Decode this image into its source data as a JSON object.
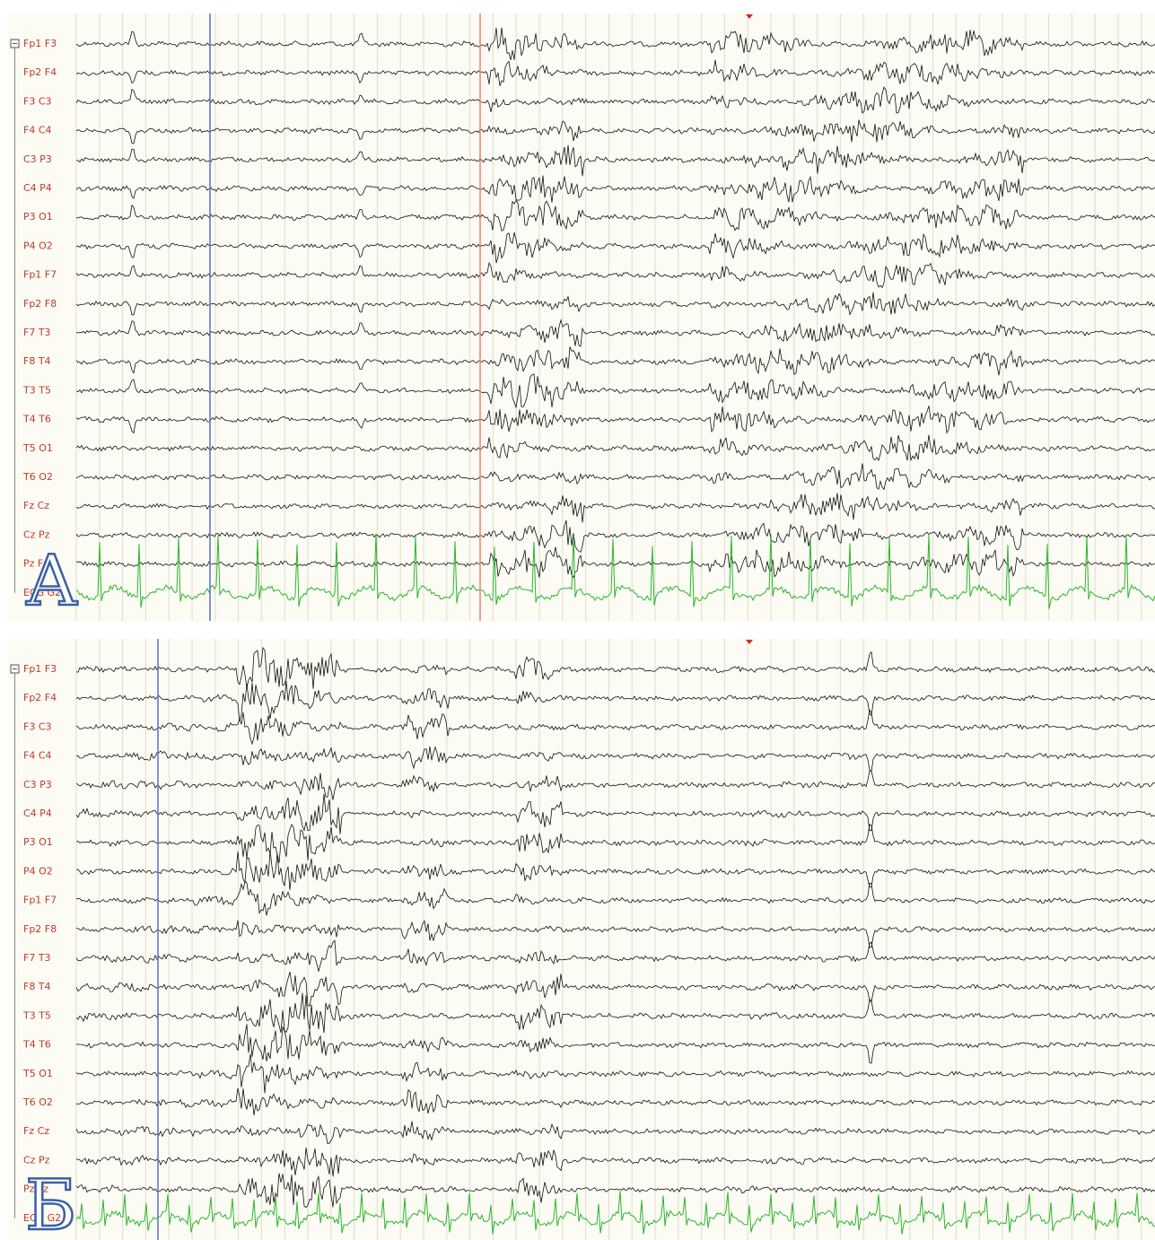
{
  "panels": [
    {
      "letter": "А",
      "channels": [
        "Fp1 F3",
        "Fp2 F4",
        "F3 C3",
        "F4 C4",
        "C3 P3",
        "C4 P4",
        "P3 O1",
        "P4 O2",
        "Fp1 F7",
        "Fp2 F8",
        "F7 T3",
        "F8 T4",
        "T3 T5",
        "T4 T6",
        "T5 O1",
        "T6 O2",
        "Fz Cz",
        "Cz Pz",
        "Pz Fz",
        "ECG G2"
      ]
    },
    {
      "letter": "Б",
      "channels": [
        "Fp1 F3",
        "Fp2 F4",
        "F3 C3",
        "F4 C4",
        "C3 P3",
        "C4 P4",
        "P3 O1",
        "P4 O2",
        "Fp1 F7",
        "Fp2 F8",
        "F7 T3",
        "F8 T4",
        "T3 T5",
        "T4 T6",
        "T5 O1",
        "T6 O2",
        "Fz Cz",
        "Cz Pz",
        "Pz Fz",
        "ECG G2"
      ]
    }
  ]
}
